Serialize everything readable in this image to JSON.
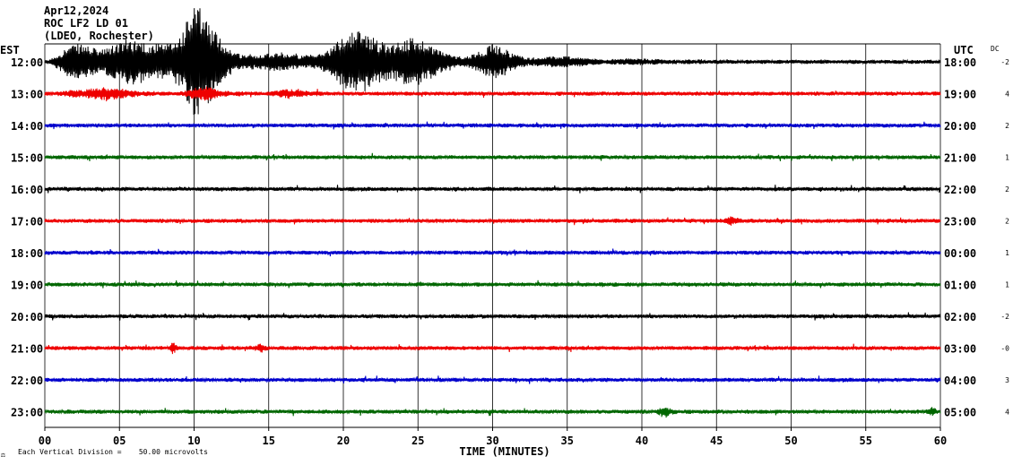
{
  "header": {
    "date": "Apr12,2024",
    "station": "ROC LF2 LD 01",
    "network": "(LDEO, Rochester)"
  },
  "left_axis_label": "EST",
  "right_axis_label": "UTC",
  "dc_label": "DC",
  "footer": {
    "icon_glyph": "⚖",
    "scale_text": "Each Vertical Division =    50.00 microvolts"
  },
  "colors": {
    "black": "#000000",
    "red": "#ee0000",
    "blue": "#0000cc",
    "green": "#006600",
    "grid": "#000000"
  },
  "chart_data": {
    "type": "line",
    "title": "",
    "xlabel": "TIME (MINUTES)",
    "ylabel": "",
    "xlim": [
      0,
      60
    ],
    "x_ticks": [
      "00",
      "05",
      "10",
      "15",
      "20",
      "25",
      "30",
      "35",
      "40",
      "45",
      "50",
      "55",
      "60"
    ],
    "grid": true,
    "series": [
      {
        "est": "12:00",
        "utc": "18:00",
        "dc": "-2",
        "color": "black",
        "events": [
          {
            "start": 0.3,
            "end": 32,
            "peak_min": 3,
            "amp": 32
          },
          {
            "start": 7,
            "end": 14,
            "peak_min": 10,
            "amp": 62
          },
          {
            "start": 17,
            "end": 31,
            "peak_min": 23,
            "amp": 46
          },
          {
            "start": 28,
            "end": 44,
            "peak_min": 30,
            "amp": 12
          }
        ]
      },
      {
        "est": "13:00",
        "utc": "19:00",
        "dc": "4",
        "color": "red",
        "events": [
          {
            "start": 1,
            "end": 8,
            "peak_min": 3.5,
            "amp": 10
          },
          {
            "start": 9,
            "end": 14,
            "peak_min": 11,
            "amp": 8
          },
          {
            "start": 15,
            "end": 19,
            "peak_min": 17,
            "amp": 7
          }
        ]
      },
      {
        "est": "14:00",
        "utc": "20:00",
        "dc": "2",
        "color": "blue",
        "events": []
      },
      {
        "est": "15:00",
        "utc": "21:00",
        "dc": "1",
        "color": "green",
        "events": []
      },
      {
        "est": "16:00",
        "utc": "22:00",
        "dc": "2",
        "color": "black",
        "events": []
      },
      {
        "est": "17:00",
        "utc": "23:00",
        "dc": "2",
        "color": "red",
        "events": [
          {
            "start": 45.5,
            "end": 47,
            "peak_min": 46,
            "amp": 4
          }
        ]
      },
      {
        "est": "18:00",
        "utc": "00:00",
        "dc": "1",
        "color": "blue",
        "events": []
      },
      {
        "est": "19:00",
        "utc": "01:00",
        "dc": "1",
        "color": "green",
        "events": []
      },
      {
        "est": "20:00",
        "utc": "02:00",
        "dc": "-2",
        "color": "black",
        "events": []
      },
      {
        "est": "21:00",
        "utc": "03:00",
        "dc": "-0",
        "color": "red",
        "events": [
          {
            "start": 8.3,
            "end": 9,
            "peak_min": 8.6,
            "amp": 6
          },
          {
            "start": 14,
            "end": 15,
            "peak_min": 14.5,
            "amp": 5
          }
        ]
      },
      {
        "est": "22:00",
        "utc": "04:00",
        "dc": "3",
        "color": "blue",
        "events": []
      },
      {
        "est": "23:00",
        "utc": "05:00",
        "dc": "4",
        "color": "green",
        "events": [
          {
            "start": 41,
            "end": 42.5,
            "peak_min": 41.6,
            "amp": 6
          },
          {
            "start": 59,
            "end": 60,
            "peak_min": 59.5,
            "amp": 5
          }
        ]
      }
    ]
  }
}
